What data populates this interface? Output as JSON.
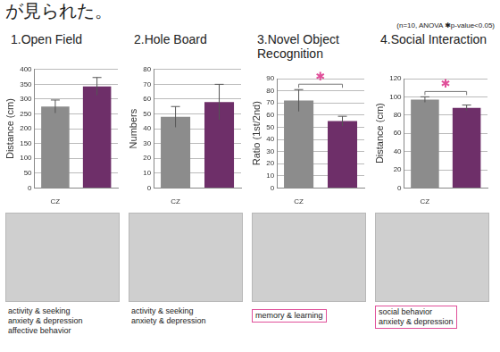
{
  "header": "が見られた。",
  "note": "(n=10, ANOVA ✱p-value<0.05)",
  "chart_data": [
    {
      "type": "bar",
      "title": "1.Open Field",
      "y_label": "Distance (cm)",
      "categories": [
        "CZ",
        null
      ],
      "values": [
        275,
        343
      ],
      "errors": [
        22,
        30
      ],
      "colors": [
        "#8c8c8c",
        "#6e2f69"
      ],
      "ylim": [
        0,
        400
      ],
      "yticks": [
        0,
        50,
        100,
        150,
        200,
        250,
        300,
        350,
        400
      ],
      "grid": true
    },
    {
      "type": "bar",
      "title": "2.Hole Board",
      "y_label": "Numbers",
      "categories": [
        "CZ",
        null
      ],
      "values": [
        48,
        58
      ],
      "errors": [
        7,
        12
      ],
      "colors": [
        "#8c8c8c",
        "#6e2f69"
      ],
      "ylim": [
        0,
        80
      ],
      "yticks": [
        0,
        10,
        20,
        30,
        40,
        50,
        60,
        70,
        80
      ],
      "grid": true
    },
    {
      "type": "bar",
      "title": "3.Novel Object Recognition",
      "y_label": "Ratio (1st/2nd)",
      "categories": [
        "CZ",
        null
      ],
      "values": [
        72,
        55
      ],
      "errors": [
        9,
        4
      ],
      "colors": [
        "#8c8c8c",
        "#6e2f69"
      ],
      "ylim": [
        0,
        90
      ],
      "yticks": [
        0,
        10,
        20,
        30,
        40,
        50,
        60,
        70,
        80,
        90
      ],
      "grid": true,
      "significance": "✱"
    },
    {
      "type": "bar",
      "title": "4.Social Interaction",
      "y_label": "Distance (cm)",
      "categories": [
        "CZ",
        null
      ],
      "values": [
        97,
        88
      ],
      "errors": [
        3,
        3
      ],
      "colors": [
        "#8c8c8c",
        "#6e2f69"
      ],
      "ylim": [
        0,
        120
      ],
      "yticks": [
        0,
        20,
        40,
        60,
        80,
        100,
        120
      ],
      "grid": true,
      "significance": "✱"
    }
  ],
  "panels": [
    {
      "captions": [
        "activity & seeking",
        "anxiety & depression",
        "affective behavior"
      ],
      "highlighted": false
    },
    {
      "captions": [
        "activity & seeking",
        "anxiety & depression"
      ],
      "highlighted": false
    },
    {
      "captions": [
        "memory & learning"
      ],
      "highlighted": true
    },
    {
      "captions": [
        "social behavior",
        "anxiety & depression"
      ],
      "highlighted": true
    }
  ]
}
